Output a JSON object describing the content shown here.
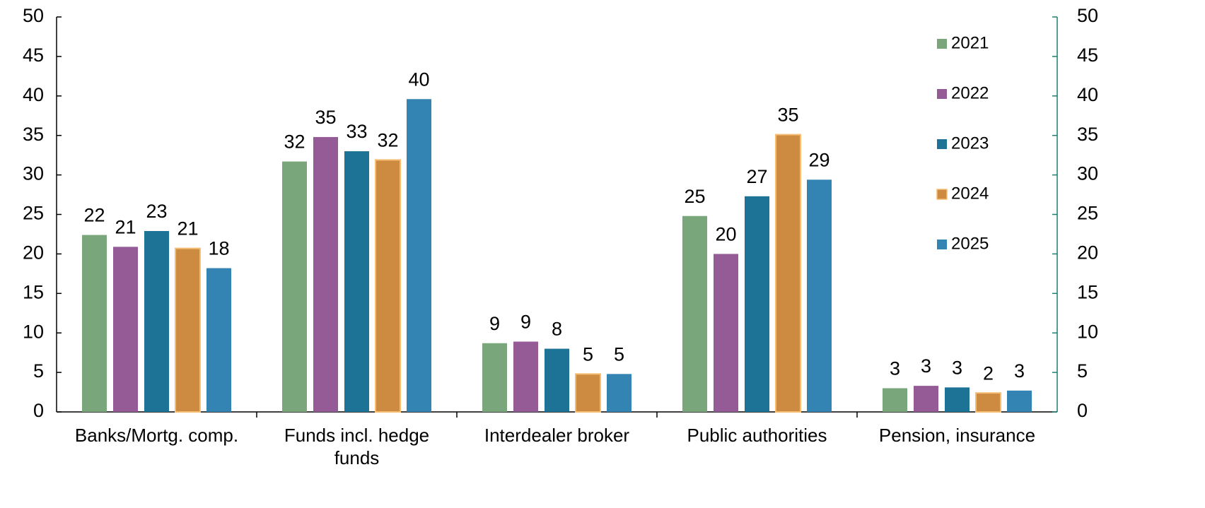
{
  "chart_data": {
    "type": "bar",
    "categories": [
      "Banks/Mortg. comp.",
      "Funds incl. hedge funds",
      "Interdealer broker",
      "Public authorities",
      "Pension, insurance"
    ],
    "series": [
      {
        "name": "2021",
        "color": "#7aa67c",
        "values": [
          22.4,
          31.7,
          8.7,
          24.8,
          3.0
        ],
        "value_labels": [
          22,
          32,
          9,
          25,
          3
        ]
      },
      {
        "name": "2022",
        "color": "#955b96",
        "values": [
          20.9,
          34.8,
          8.9,
          20.0,
          3.3
        ],
        "value_labels": [
          21,
          35,
          9,
          20,
          3
        ]
      },
      {
        "name": "2023",
        "color": "#1d7396",
        "values": [
          22.9,
          33.0,
          8.0,
          27.3,
          3.1
        ],
        "value_labels": [
          23,
          33,
          8,
          27,
          3
        ]
      },
      {
        "name": "2024",
        "color": "#cd8b42",
        "values": [
          20.7,
          31.9,
          4.8,
          35.1,
          2.4
        ],
        "value_labels": [
          21,
          32,
          5,
          35,
          2
        ]
      },
      {
        "name": "2025",
        "color": "#3384b2",
        "values": [
          18.2,
          39.6,
          4.8,
          29.4,
          2.7
        ],
        "value_labels": [
          18,
          40,
          5,
          29,
          3
        ]
      }
    ],
    "ylim": [
      0,
      50
    ],
    "yticks": [
      0,
      5,
      10,
      15,
      20,
      25,
      30,
      35,
      40,
      45,
      50
    ],
    "y2lim": [
      0,
      50
    ],
    "y2ticks": [
      0,
      5,
      10,
      15,
      20,
      25,
      30,
      35,
      40,
      45,
      50
    ],
    "legend": "upper right",
    "grid": false
  }
}
